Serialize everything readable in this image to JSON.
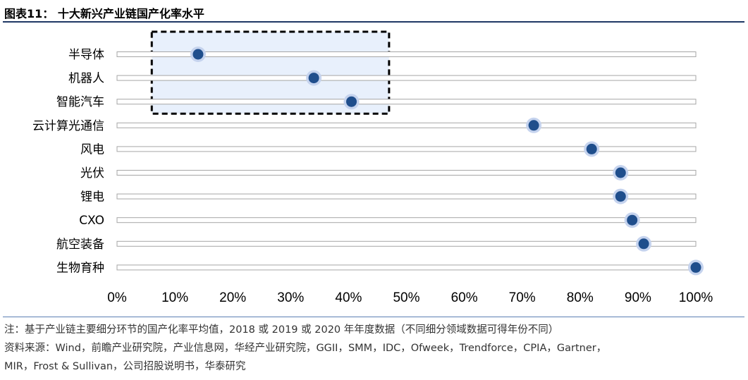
{
  "header": {
    "title": "图表11： 十大新兴产业链国产化率水平"
  },
  "chart_data": {
    "type": "scatter",
    "title": "图表11： 十大新兴产业链国产化率水平",
    "categories": [
      "半导体",
      "机器人",
      "智能汽车",
      "云计算光通信",
      "风电",
      "光伏",
      "锂电",
      "CXO",
      "航空装备",
      "生物育种"
    ],
    "values": [
      14,
      34,
      40.5,
      72,
      82,
      87,
      87,
      89,
      91,
      100
    ],
    "xlim": [
      0,
      100
    ],
    "xticks": [
      "0%",
      "10%",
      "20%",
      "30%",
      "40%",
      "50%",
      "60%",
      "70%",
      "80%",
      "90%",
      "100%"
    ],
    "xlabel": "",
    "ylabel": "",
    "grid": false,
    "highlight_box": {
      "categories": [
        "半导体",
        "机器人",
        "智能汽车"
      ],
      "x_range": [
        6,
        47
      ]
    },
    "colors": {
      "point": "#1f4e8c",
      "halo": "#c5d3ee",
      "track": "#ffffff",
      "track_border": "#a6a6a6",
      "highlight_fill": "#e8f0fc",
      "title_rule": "#1f3864"
    }
  },
  "footer": {
    "note_line1": "注：基于产业链主要细分环节的国产化率平均值，2018 或 2019 或 2020 年年度数据（不同细分领域数据可得年份不同）",
    "source_line1": "资料来源：Wind，前瞻产业研究院，产业信息网，华经产业研究院，GGII，SMM，IDC，Ofweek，Trendforce，CPIA，Gartner，",
    "source_line2": "MIR，Frost & Sullivan，公司招股说明书，华泰研究"
  }
}
